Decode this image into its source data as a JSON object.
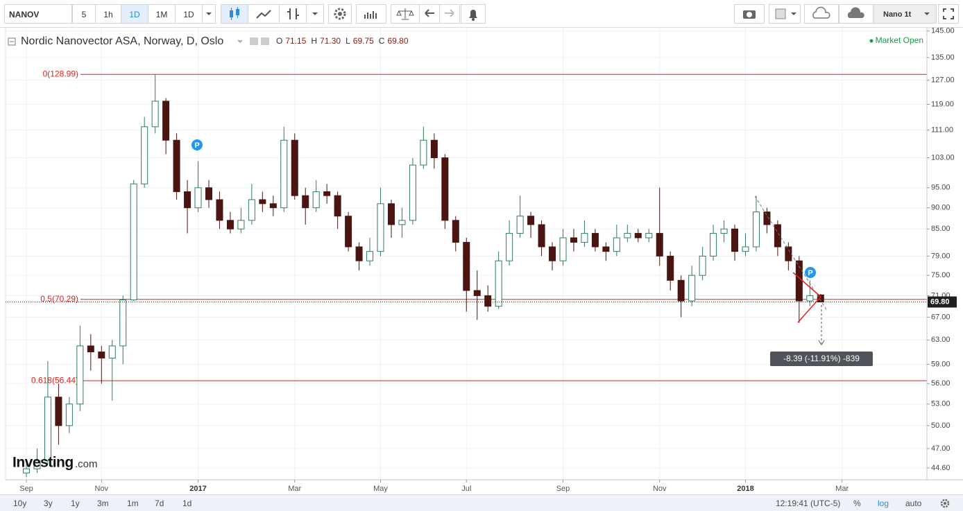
{
  "toolbar": {
    "symbol": "NANOV",
    "intervals": [
      "5",
      "1h",
      "1D",
      "1M",
      "1D"
    ],
    "layout": "Nano 1t"
  },
  "header": {
    "title": "Nordic Nanovector ASA, Norway, D, Oslo",
    "ohlc": [
      {
        "key": "O",
        "value": "71.15"
      },
      {
        "key": "H",
        "value": "71.30"
      },
      {
        "key": "L",
        "value": "69.75"
      },
      {
        "key": "C",
        "value": "69.80"
      }
    ],
    "status": "Market Open"
  },
  "watermark": {
    "brand": "Investing",
    "suffix": ".com"
  },
  "chart_data": {
    "type": "candlestick",
    "categories": [
      "Sep",
      null,
      null,
      null,
      null,
      null,
      null,
      "Nov",
      null,
      null,
      null,
      null,
      null,
      null,
      null,
      null,
      "2017",
      null,
      null,
      null,
      null,
      null,
      null,
      null,
      null,
      "Mar",
      null,
      null,
      null,
      null,
      null,
      null,
      null,
      "May",
      null,
      null,
      null,
      null,
      null,
      null,
      null,
      "Jul",
      null,
      null,
      null,
      null,
      null,
      null,
      null,
      null,
      "Sep",
      null,
      null,
      null,
      null,
      null,
      null,
      null,
      null,
      "Nov",
      null,
      null,
      null,
      null,
      null,
      null,
      null,
      "2018",
      null,
      null,
      null,
      null,
      null,
      null,
      null,
      null,
      "Mar",
      null
    ],
    "open": [
      44,
      44.5,
      45.5,
      54,
      50,
      53,
      62,
      61,
      60,
      62,
      70.2,
      96,
      112,
      120,
      108,
      94,
      90,
      95,
      92,
      87,
      85,
      87,
      92,
      91,
      90,
      108,
      93,
      90,
      94,
      93,
      88,
      81,
      78,
      80,
      91,
      86,
      87,
      101,
      108,
      103,
      87,
      82,
      72,
      71,
      69,
      78,
      84,
      88,
      86,
      81,
      78,
      83,
      82,
      84,
      81,
      80,
      83,
      84,
      83,
      84,
      79,
      74,
      70,
      75,
      79,
      84,
      85,
      80,
      81,
      89,
      86,
      81,
      78,
      70,
      71.15,
      null,
      null,
      null
    ],
    "high": [
      45.5,
      47,
      59.5,
      56,
      54,
      65.5,
      64,
      62,
      63,
      71,
      97,
      115,
      128.99,
      121,
      110,
      97,
      102,
      97,
      94,
      89,
      90,
      96,
      94,
      93,
      112,
      110,
      95,
      97,
      96,
      94,
      89,
      82,
      83,
      95,
      92,
      90,
      103,
      112,
      110,
      104,
      88,
      83,
      76,
      73,
      80,
      87,
      93,
      89,
      87,
      82,
      85,
      85,
      87,
      85,
      82,
      86,
      86,
      85,
      85,
      95,
      80,
      75,
      77,
      81,
      86,
      87,
      86,
      84,
      93,
      90,
      87,
      82,
      79,
      74,
      71.3,
      null,
      null,
      null
    ],
    "low": [
      43.5,
      44,
      45,
      47.5,
      49,
      52,
      58,
      56,
      53.5,
      59,
      70,
      95,
      110,
      104,
      92,
      84,
      89,
      90,
      85,
      84,
      84,
      86,
      89,
      88,
      89,
      92,
      86,
      89,
      91,
      85,
      80,
      76,
      77,
      79,
      83,
      83,
      86,
      100,
      100,
      85,
      80,
      68,
      66.5,
      68,
      68.5,
      77,
      83,
      83,
      79,
      76,
      77,
      80,
      81,
      80,
      78,
      79,
      82,
      82,
      82,
      77,
      72,
      67,
      69,
      74,
      78,
      82,
      78,
      79,
      80,
      84,
      79,
      76,
      66,
      69,
      69.75,
      null,
      null,
      null
    ],
    "close": [
      44.5,
      45.5,
      54,
      50,
      53,
      62,
      61,
      60,
      62,
      70.2,
      96,
      112,
      120,
      108,
      94,
      90,
      95,
      92,
      87,
      85,
      87,
      92,
      91,
      90,
      108,
      93,
      90,
      94,
      93,
      88,
      81,
      78,
      80,
      91,
      86,
      87,
      101,
      108,
      103,
      87,
      82,
      72,
      71,
      69,
      78,
      84,
      88,
      86,
      81,
      78,
      83,
      82,
      84,
      81,
      80,
      83,
      84,
      83,
      84,
      79,
      74,
      70,
      75,
      79,
      84,
      85,
      80,
      81,
      89,
      86,
      81,
      78,
      70,
      71,
      69.8,
      null,
      null,
      null
    ],
    "up_color": "#2e7d5b",
    "down_color": "#4a1410",
    "ylim": [
      43.2,
      146.3
    ],
    "log_scale": true,
    "grid": true,
    "yticks": [
      {
        "value": 145,
        "label": "145.00"
      },
      {
        "value": 135,
        "label": "135.00"
      },
      {
        "value": 127,
        "label": "127.00"
      },
      {
        "value": 119,
        "label": "119.00"
      },
      {
        "value": 111,
        "label": "111.00"
      },
      {
        "value": 103,
        "label": "103.00"
      },
      {
        "value": 95,
        "label": "95.00"
      },
      {
        "value": 90,
        "label": "90.00"
      },
      {
        "value": 85,
        "label": "85.00"
      },
      {
        "value": 79,
        "label": "79.00"
      },
      {
        "value": 75,
        "label": "75.00"
      },
      {
        "value": 71,
        "label": "71.00"
      },
      {
        "value": 67,
        "label": "67.00"
      },
      {
        "value": 63,
        "label": "63.00"
      },
      {
        "value": 59,
        "label": "59.00"
      },
      {
        "value": 56,
        "label": "56.00"
      },
      {
        "value": 53,
        "label": "53.00"
      },
      {
        "value": 50,
        "label": "50.00"
      },
      {
        "value": 47,
        "label": "47.00"
      },
      {
        "value": 44.6,
        "label": "44.60"
      }
    ],
    "levels": [
      {
        "value": 128.99,
        "label": "0(128.99)"
      },
      {
        "value": 70.29,
        "label": "0.5(70.29)"
      },
      {
        "value": 56.44,
        "label": "0.618(56.44)"
      }
    ],
    "level_color": "#e0201b",
    "last_price_label": "69.80",
    "annotation": "-8.39 (-11.91%) -839",
    "events": [
      "P",
      "P"
    ]
  },
  "footer": {
    "ranges": [
      "10y",
      "3y",
      "1y",
      "3m",
      "1m",
      "7d",
      "1d"
    ],
    "clock": "12:19:41 (UTC-5)",
    "percent": "%",
    "log": "log",
    "auto": "auto"
  }
}
